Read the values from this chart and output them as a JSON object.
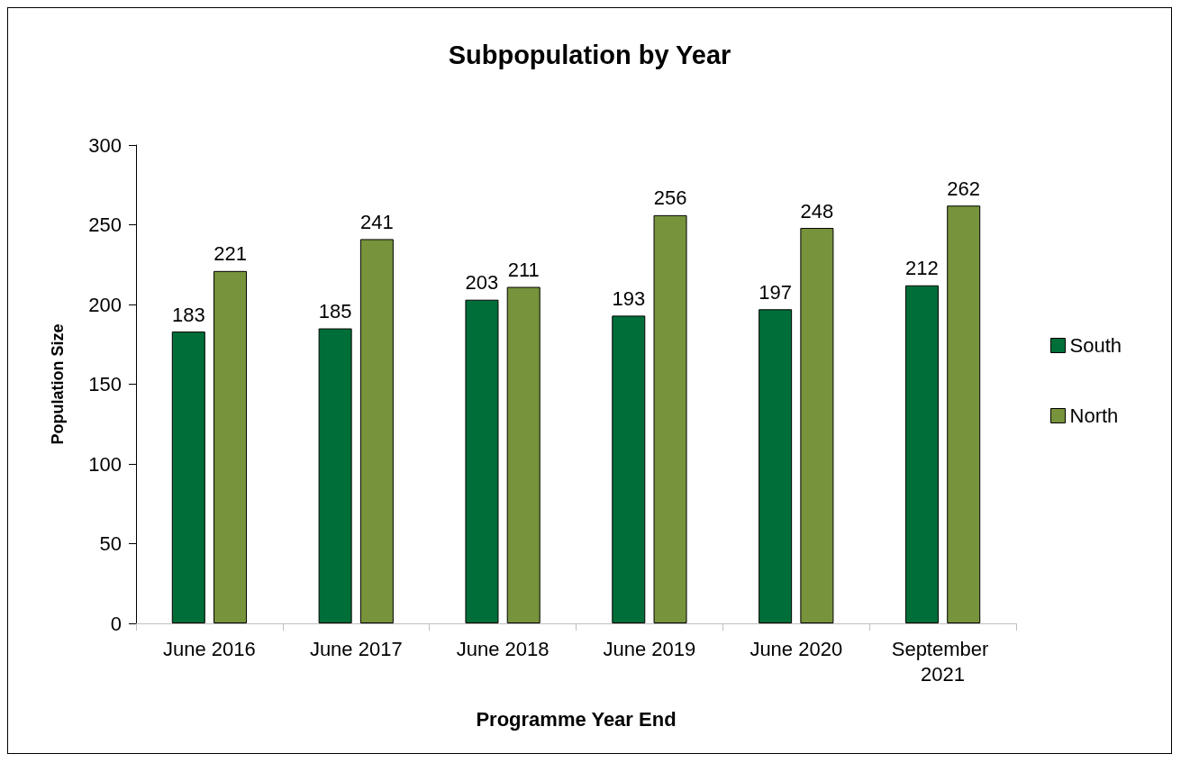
{
  "chart_data": {
    "type": "bar",
    "title": "Subpopulation by Year",
    "xlabel": "Programme Year End",
    "ylabel": "Population Size",
    "categories": [
      "June 2016",
      "June 2017",
      "June 2018",
      "June 2019",
      "June 2020",
      "September 2021"
    ],
    "series": [
      {
        "name": "South",
        "color": "#006e38",
        "values": [
          183,
          185,
          203,
          193,
          197,
          212
        ]
      },
      {
        "name": "North",
        "color": "#77933c",
        "values": [
          221,
          241,
          211,
          256,
          248,
          262
        ]
      }
    ],
    "ylim": [
      0,
      300
    ],
    "yticks": [
      0,
      50,
      100,
      150,
      200,
      250,
      300
    ],
    "grid": false,
    "legend": "right",
    "data_labels": true
  }
}
